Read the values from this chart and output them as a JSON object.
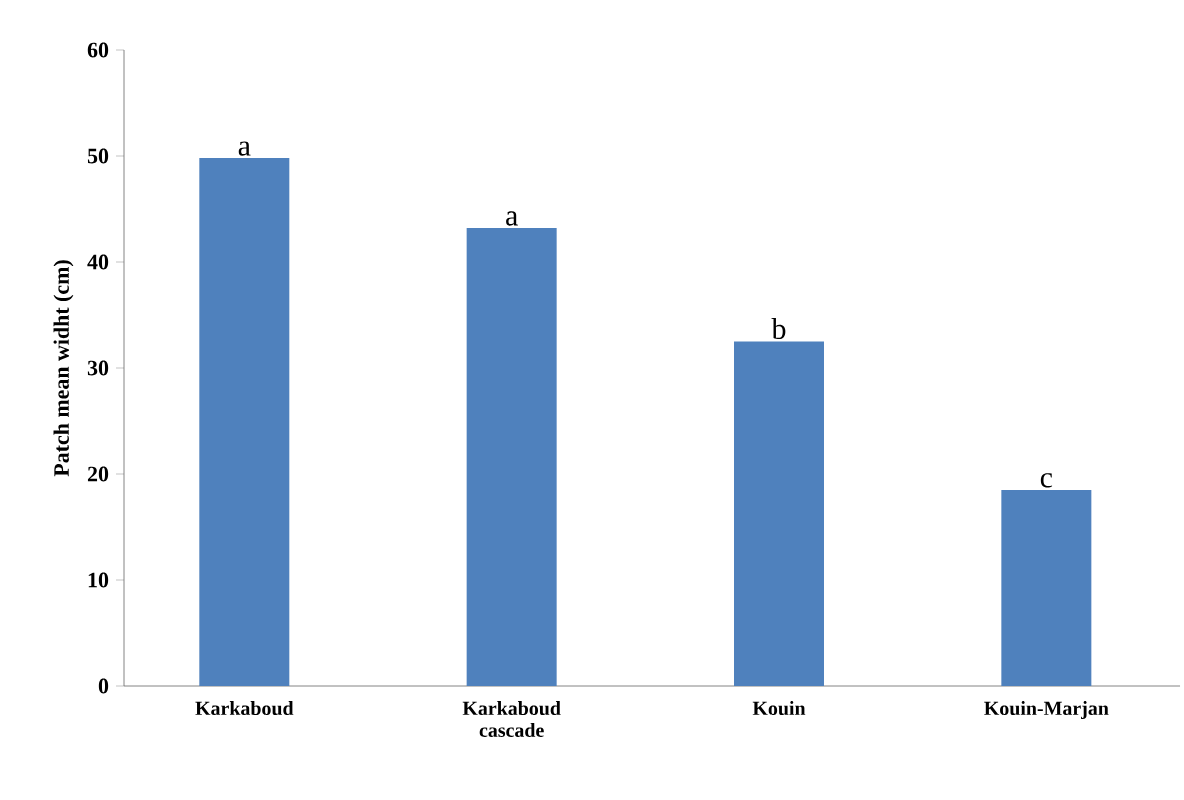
{
  "chart_data": {
    "type": "bar",
    "ylabel": "Patch mean widht (cm)",
    "categories": [
      "Karkaboud",
      "Karkaboud cascade",
      "Kouin",
      "Kouin-Marjan"
    ],
    "values": [
      49.8,
      43.2,
      32.5,
      18.5
    ],
    "color": "#4f81bd",
    "ylim": [
      0,
      60
    ],
    "yticks": [
      0,
      10,
      20,
      30,
      40,
      50,
      60
    ],
    "annotations": [
      {
        "text": "a",
        "x": "Karkaboud",
        "y": 49.8
      },
      {
        "text": "a",
        "x": "Karkaboud cascade",
        "y": 43.2
      },
      {
        "text": "b",
        "x": "Kouin",
        "y": 32.5
      },
      {
        "text": "c",
        "x": "Kouin-Marjan",
        "y": 18.5
      }
    ]
  }
}
